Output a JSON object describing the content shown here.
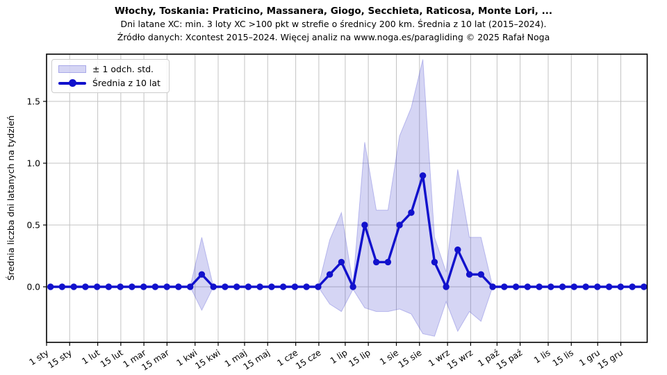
{
  "header": {
    "title": "Włochy, Toskania: Praticino, Massanera, Giogo, Secchieta, Raticosa, Monte Lori, ...",
    "subtitle1": "Dni latane XC: min. 3 loty XC >100 pkt w strefie o średnicy 200 km. Średnia z 10 lat (2015–2024).",
    "subtitle2": "Źródło danych: Xcontest 2015–2024. Więcej analiz na www.noga.es/paragliding © 2025 Rafał Noga"
  },
  "legend": {
    "band_label": "± 1 odch. std.",
    "line_label": "Średnia z 10 lat",
    "position": "upper left"
  },
  "colors": {
    "line": "#1111cc",
    "band_fill": "rgba(55,55,205,0.21)",
    "band_edge": "rgba(55,55,205,0.28)",
    "grid": "#c3c3c3",
    "spine": "#000000",
    "text": "#000000"
  },
  "chart_data": {
    "type": "line",
    "title": "Włochy, Toskania: Praticino, Massanera, Giogo, Secchieta, Raticosa, Monte Lori, ...",
    "ylabel": "Średnia liczba dni latanych na tydzień",
    "x_tick_labels": [
      "1 sty",
      "15 sty",
      "1 lut",
      "15 lut",
      "1 mar",
      "15 mar",
      "1 kwi",
      "15 kwi",
      "1 maj",
      "15 maj",
      "1 cze",
      "15 cze",
      "1 lip",
      "15 lip",
      "1 sie",
      "15 sie",
      "1 wrz",
      "15 wrz",
      "1 paź",
      "15 paź",
      "1 lis",
      "15 lis",
      "1 gru",
      "15 gru"
    ],
    "x_tick_days": [
      1,
      15,
      32,
      46,
      60,
      74,
      91,
      105,
      121,
      135,
      152,
      166,
      182,
      196,
      213,
      227,
      244,
      258,
      274,
      288,
      305,
      319,
      335,
      349
    ],
    "x_range_days": [
      1,
      365
    ],
    "y_ticks": [
      0.0,
      0.5,
      1.0,
      1.5
    ],
    "ylim": [
      -0.45,
      1.88
    ],
    "grid": true,
    "weeks": 52,
    "series": [
      {
        "name": "Średnia z 10 lat",
        "marker": "circle",
        "values": [
          0,
          0,
          0,
          0,
          0,
          0,
          0,
          0,
          0,
          0,
          0,
          0,
          0,
          0.1,
          0,
          0,
          0,
          0,
          0,
          0,
          0,
          0,
          0,
          0,
          0.1,
          0.2,
          0,
          0.5,
          0.2,
          0.2,
          0.5,
          0.6,
          0.9,
          0.2,
          0,
          0.3,
          0.1,
          0.1,
          0,
          0,
          0,
          0,
          0,
          0,
          0,
          0,
          0,
          0,
          0,
          0,
          0,
          0
        ]
      }
    ],
    "band": {
      "name": "± 1 odch. std.",
      "upper": [
        0,
        0,
        0,
        0,
        0,
        0,
        0,
        0,
        0,
        0,
        0,
        0,
        0,
        0.4,
        0,
        0,
        0,
        0,
        0,
        0,
        0,
        0,
        0,
        0,
        0.38,
        0.6,
        0.02,
        1.17,
        0.62,
        0.62,
        1.22,
        1.45,
        1.84,
        0.4,
        0.12,
        0.95,
        0.4,
        0.4,
        0,
        0,
        0,
        0,
        0,
        0,
        0,
        0,
        0,
        0,
        0,
        0,
        0,
        0
      ],
      "lower": [
        0,
        0,
        0,
        0,
        0,
        0,
        0,
        0,
        0,
        0,
        0,
        0,
        0,
        -0.19,
        0,
        0,
        0,
        0,
        0,
        0,
        0,
        0,
        0,
        0,
        -0.14,
        -0.2,
        -0.02,
        -0.17,
        -0.2,
        -0.2,
        -0.18,
        -0.22,
        -0.38,
        -0.4,
        -0.12,
        -0.36,
        -0.2,
        -0.28,
        0,
        0,
        0,
        0,
        0,
        0,
        0,
        0,
        0,
        0,
        0,
        0,
        0,
        0
      ]
    }
  }
}
